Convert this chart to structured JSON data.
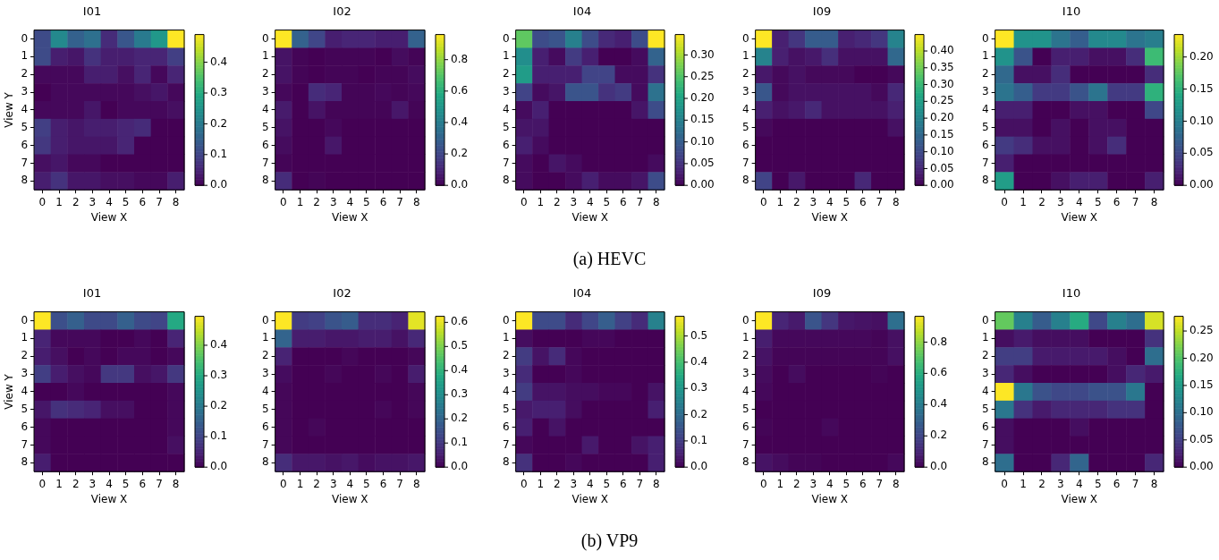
{
  "chart_data": [
    {
      "type": "heatmap",
      "title": "I01",
      "xlabel": "View X",
      "ylabel": "View Y",
      "categories": [
        "0",
        "1",
        "2",
        "3",
        "4",
        "5",
        "6",
        "7",
        "8"
      ],
      "y_categories": [
        "0",
        "1",
        "2",
        "3",
        "4",
        "5",
        "6",
        "7",
        "8"
      ],
      "cells": [
        [
          0.11,
          0.23,
          0.15,
          0.18,
          0.06,
          0.13,
          0.2,
          0.26,
          0.49
        ],
        [
          0.11,
          0.04,
          0.03,
          0.07,
          0.04,
          0.04,
          0.05,
          0.05,
          0.09
        ],
        [
          0.01,
          0.01,
          0.01,
          0.04,
          0.04,
          0.02,
          0.05,
          0.01,
          0.05
        ],
        [
          0.0,
          0.01,
          0.01,
          0.01,
          0.01,
          0.01,
          0.02,
          0.03,
          0.01
        ],
        [
          0.01,
          0.01,
          0.01,
          0.03,
          0.0,
          0.01,
          0.01,
          0.01,
          0.02
        ],
        [
          0.09,
          0.04,
          0.03,
          0.04,
          0.04,
          0.05,
          0.06,
          0.0,
          0.0
        ],
        [
          0.08,
          0.04,
          0.03,
          0.03,
          0.03,
          0.05,
          0.0,
          0.0,
          0.0
        ],
        [
          0.02,
          0.03,
          0.01,
          0.01,
          0.0,
          0.0,
          0.0,
          0.0,
          0.0
        ],
        [
          0.04,
          0.07,
          0.03,
          0.03,
          0.02,
          0.02,
          0.01,
          0.01,
          0.04
        ]
      ],
      "clim": [
        0,
        0.49
      ],
      "cticks": [
        {
          "value": 0,
          "label": "0.0"
        },
        0.1,
        0.2,
        0.3,
        0.4
      ]
    },
    {
      "type": "heatmap",
      "title": "I02",
      "xlabel": "View X",
      "categories": [
        "0",
        "1",
        "2",
        "3",
        "4",
        "5",
        "6",
        "7",
        "8"
      ],
      "y_categories": [
        "0",
        "1",
        "2",
        "3",
        "4",
        "5",
        "6",
        "7",
        "8"
      ],
      "cells": [
        [
          0.96,
          0.3,
          0.2,
          0.08,
          0.1,
          0.1,
          0.08,
          0.08,
          0.3
        ],
        [
          0.05,
          0.01,
          0.0,
          0.01,
          0.01,
          0.01,
          0.0,
          0.03,
          0.01
        ],
        [
          0.05,
          0.01,
          0.0,
          0.01,
          0.01,
          0.0,
          0.01,
          0.01,
          0.03
        ],
        [
          0.02,
          0.0,
          0.12,
          0.1,
          0.01,
          0.01,
          0.02,
          0.01,
          0.02
        ],
        [
          0.07,
          0.0,
          0.05,
          0.01,
          0.01,
          0.01,
          0.01,
          0.06,
          0.01
        ],
        [
          0.05,
          0.0,
          0.0,
          0.02,
          0.0,
          0.0,
          0.0,
          0.0,
          0.0
        ],
        [
          0.03,
          0.0,
          0.0,
          0.06,
          0.0,
          0.0,
          0.0,
          0.0,
          0.0
        ],
        [
          0.01,
          0.0,
          0.0,
          0.0,
          0.0,
          0.0,
          0.0,
          0.0,
          0.0
        ],
        [
          0.12,
          0.0,
          0.01,
          0.0,
          0.0,
          0.0,
          0.0,
          0.0,
          0.0
        ]
      ],
      "clim": [
        0,
        0.96
      ],
      "cticks": [
        {
          "value": 0,
          "label": "0.0"
        },
        0.2,
        0.4,
        0.6,
        0.8
      ]
    },
    {
      "type": "heatmap",
      "title": "I04",
      "xlabel": "View X",
      "categories": [
        "0",
        "1",
        "2",
        "3",
        "4",
        "5",
        "6",
        "7",
        "8"
      ],
      "y_categories": [
        "0",
        "1",
        "2",
        "3",
        "4",
        "5",
        "6",
        "7",
        "8"
      ],
      "cells": [
        [
          0.26,
          0.08,
          0.09,
          0.15,
          0.08,
          0.04,
          0.03,
          0.08,
          0.347
        ],
        [
          0.17,
          0.03,
          0.01,
          0.06,
          0.03,
          0.0,
          0.0,
          0.01,
          0.11
        ],
        [
          0.19,
          0.03,
          0.03,
          0.03,
          0.07,
          0.07,
          0.01,
          0.01,
          0.05
        ],
        [
          0.07,
          0.01,
          0.02,
          0.09,
          0.09,
          0.05,
          0.06,
          0.01,
          0.13
        ],
        [
          0.01,
          0.03,
          0.0,
          0.0,
          0.0,
          0.0,
          0.0,
          0.02,
          0.08
        ],
        [
          0.02,
          0.02,
          0.0,
          0.0,
          0.0,
          0.0,
          0.0,
          0.0,
          0.0
        ],
        [
          0.03,
          0.01,
          0.0,
          0.0,
          0.0,
          0.0,
          0.0,
          0.0,
          0.0
        ],
        [
          0.01,
          0.0,
          0.02,
          0.01,
          0.0,
          0.0,
          0.0,
          0.0,
          0.01
        ],
        [
          0.01,
          0.0,
          0.0,
          0.01,
          0.03,
          0.01,
          0.01,
          0.02,
          0.08
        ]
      ],
      "clim": [
        0,
        0.347
      ],
      "cticks": [
        {
          "value": 0,
          "label": "0.00"
        },
        {
          "value": 0.05,
          "label": "0.05"
        },
        {
          "value": 0.1,
          "label": "0.10"
        },
        {
          "value": 0.15,
          "label": "0.15"
        },
        {
          "value": 0.2,
          "label": "0.20"
        },
        {
          "value": 0.25,
          "label": "0.25"
        },
        {
          "value": 0.3,
          "label": "0.30"
        }
      ],
      "annotations": [
        "(a) HEVC"
      ]
    },
    {
      "type": "heatmap",
      "title": "I09",
      "xlabel": "View X",
      "categories": [
        "0",
        "1",
        "2",
        "3",
        "4",
        "5",
        "6",
        "7",
        "8"
      ],
      "y_categories": [
        "0",
        "1",
        "2",
        "3",
        "4",
        "5",
        "6",
        "7",
        "8"
      ],
      "cells": [
        [
          0.45,
          0.04,
          0.07,
          0.13,
          0.13,
          0.04,
          0.05,
          0.07,
          0.2
        ],
        [
          0.2,
          0.04,
          0.02,
          0.03,
          0.06,
          0.02,
          0.02,
          0.02,
          0.15
        ],
        [
          0.03,
          0.01,
          0.02,
          0.01,
          0.01,
          0.01,
          0.0,
          0.0,
          0.01
        ],
        [
          0.12,
          0.01,
          0.02,
          0.02,
          0.02,
          0.02,
          0.02,
          0.01,
          0.05
        ],
        [
          0.04,
          0.02,
          0.03,
          0.05,
          0.02,
          0.02,
          0.02,
          0.02,
          0.04
        ],
        [
          0.01,
          0.0,
          0.0,
          0.0,
          0.0,
          0.0,
          0.0,
          0.0,
          0.02
        ],
        [
          0.0,
          0.0,
          0.0,
          0.0,
          0.0,
          0.0,
          0.0,
          0.0,
          0.0
        ],
        [
          0.0,
          0.0,
          0.0,
          0.0,
          0.0,
          0.0,
          0.0,
          0.0,
          0.0
        ],
        [
          0.09,
          0.0,
          0.03,
          0.0,
          0.0,
          0.0,
          0.05,
          0.0,
          0.0
        ]
      ],
      "clim": [
        0,
        0.449
      ],
      "cticks": [
        {
          "value": 0,
          "label": "0.00"
        },
        {
          "value": 0.05,
          "label": "0.05"
        },
        {
          "value": 0.1,
          "label": "0.10"
        },
        {
          "value": 0.15,
          "label": "0.15"
        },
        {
          "value": 0.2,
          "label": "0.20"
        },
        {
          "value": 0.25,
          "label": "0.25"
        },
        {
          "value": 0.3,
          "label": "0.30"
        },
        {
          "value": 0.35,
          "label": "0.35"
        },
        {
          "value": 0.4,
          "label": "0.40"
        }
      ]
    },
    {
      "type": "heatmap",
      "title": "I10",
      "xlabel": "View X",
      "categories": [
        "0",
        "1",
        "2",
        "3",
        "4",
        "5",
        "6",
        "7",
        "8"
      ],
      "y_categories": [
        "0",
        "1",
        "2",
        "3",
        "4",
        "5",
        "6",
        "7",
        "8"
      ],
      "cells": [
        [
          0.235,
          0.12,
          0.12,
          0.09,
          0.07,
          0.11,
          0.11,
          0.09,
          0.1
        ],
        [
          0.12,
          0.06,
          0.0,
          0.02,
          0.02,
          0.01,
          0.01,
          0.03,
          0.16
        ],
        [
          0.08,
          0.01,
          0.01,
          0.03,
          0.0,
          0.0,
          0.0,
          0.0,
          0.03
        ],
        [
          0.09,
          0.07,
          0.04,
          0.04,
          0.06,
          0.09,
          0.04,
          0.04,
          0.15
        ],
        [
          0.02,
          0.02,
          0.0,
          0.0,
          0.01,
          0.01,
          0.0,
          0.0,
          0.05
        ],
        [
          0.01,
          0.01,
          0.0,
          0.01,
          0.0,
          0.01,
          0.01,
          0.0,
          0.0
        ],
        [
          0.04,
          0.03,
          0.01,
          0.01,
          0.0,
          0.01,
          0.03,
          0.0,
          0.0
        ],
        [
          0.02,
          0.0,
          0.0,
          0.0,
          0.0,
          0.0,
          0.0,
          0.0,
          0.0
        ],
        [
          0.13,
          0.0,
          0.0,
          0.01,
          0.02,
          0.02,
          0.0,
          0.0,
          0.02
        ]
      ],
      "clim": [
        0,
        0.235
      ],
      "cticks": [
        {
          "value": 0,
          "label": "0.00"
        },
        {
          "value": 0.05,
          "label": "0.05"
        },
        {
          "value": 0.1,
          "label": "0.10"
        },
        {
          "value": 0.15,
          "label": "0.15"
        },
        {
          "value": 0.2,
          "label": "0.20"
        }
      ]
    },
    {
      "type": "heatmap",
      "title": "I01",
      "xlabel": "View X",
      "ylabel": "View Y",
      "categories": [
        "0",
        "1",
        "2",
        "3",
        "4",
        "5",
        "6",
        "7",
        "8"
      ],
      "y_categories": [
        "0",
        "1",
        "2",
        "3",
        "4",
        "5",
        "6",
        "7",
        "8"
      ],
      "cells": [
        [
          0.495,
          0.12,
          0.15,
          0.11,
          0.11,
          0.15,
          0.11,
          0.1,
          0.3
        ],
        [
          0.05,
          0.01,
          0.01,
          0.01,
          0.0,
          0.0,
          0.01,
          0.0,
          0.05
        ],
        [
          0.04,
          0.02,
          0.0,
          0.01,
          0.0,
          0.01,
          0.01,
          0.0,
          0.01
        ],
        [
          0.09,
          0.04,
          0.02,
          0.01,
          0.08,
          0.08,
          0.02,
          0.03,
          0.08
        ],
        [
          0.0,
          0.0,
          0.01,
          0.0,
          0.0,
          0.0,
          0.0,
          0.0,
          0.01
        ],
        [
          0.03,
          0.07,
          0.06,
          0.05,
          0.02,
          0.02,
          0.0,
          0.0,
          0.01
        ],
        [
          0.01,
          0.0,
          0.0,
          0.0,
          0.0,
          0.0,
          0.0,
          0.0,
          0.01
        ],
        [
          0.01,
          0.0,
          0.0,
          0.0,
          0.0,
          0.0,
          0.0,
          0.0,
          0.02
        ],
        [
          0.04,
          0.0,
          0.0,
          0.0,
          0.0,
          0.0,
          0.0,
          0.0,
          0.0
        ]
      ],
      "clim": [
        0,
        0.495
      ],
      "cticks": [
        {
          "value": 0,
          "label": "0.0"
        },
        0.1,
        0.2,
        0.3,
        0.4
      ]
    },
    {
      "type": "heatmap",
      "title": "I02",
      "xlabel": "View X",
      "categories": [
        "0",
        "1",
        "2",
        "3",
        "4",
        "5",
        "6",
        "7",
        "8"
      ],
      "y_categories": [
        "0",
        "1",
        "2",
        "3",
        "4",
        "5",
        "6",
        "7",
        "8"
      ],
      "cells": [
        [
          0.625,
          0.11,
          0.12,
          0.16,
          0.18,
          0.08,
          0.08,
          0.06,
          0.6
        ],
        [
          0.2,
          0.05,
          0.05,
          0.04,
          0.04,
          0.05,
          0.05,
          0.03,
          0.07
        ],
        [
          0.06,
          0.0,
          0.0,
          0.0,
          0.01,
          0.0,
          0.0,
          0.0,
          0.01
        ],
        [
          0.02,
          0.0,
          0.0,
          0.01,
          0.0,
          0.0,
          0.01,
          0.0,
          0.05
        ],
        [
          0.01,
          0.0,
          0.0,
          0.0,
          0.0,
          0.0,
          0.0,
          0.0,
          0.01
        ],
        [
          0.01,
          0.0,
          0.0,
          0.0,
          0.0,
          0.0,
          0.01,
          0.0,
          0.01
        ],
        [
          0.01,
          0.0,
          0.01,
          0.0,
          0.0,
          0.0,
          0.0,
          0.0,
          0.0
        ],
        [
          0.01,
          0.0,
          0.0,
          0.0,
          0.0,
          0.0,
          0.0,
          0.0,
          0.0
        ],
        [
          0.08,
          0.04,
          0.04,
          0.03,
          0.04,
          0.02,
          0.03,
          0.03,
          0.04
        ]
      ],
      "clim": [
        0,
        0.625
      ],
      "cticks": [
        {
          "value": 0,
          "label": "0.0"
        },
        0.1,
        0.2,
        0.3,
        0.4,
        0.5,
        0.6
      ]
    },
    {
      "type": "heatmap",
      "title": "I04",
      "xlabel": "View X",
      "categories": [
        "0",
        "1",
        "2",
        "3",
        "4",
        "5",
        "6",
        "7",
        "8"
      ],
      "y_categories": [
        "0",
        "1",
        "2",
        "3",
        "4",
        "5",
        "6",
        "7",
        "8"
      ],
      "cells": [
        [
          0.575,
          0.13,
          0.13,
          0.07,
          0.12,
          0.17,
          0.11,
          0.07,
          0.25
        ],
        [
          0.02,
          0.0,
          0.0,
          0.0,
          0.01,
          0.01,
          0.0,
          0.0,
          0.0
        ],
        [
          0.1,
          0.03,
          0.07,
          0.01,
          0.0,
          0.0,
          0.0,
          0.0,
          0.0
        ],
        [
          0.07,
          0.0,
          0.0,
          0.01,
          0.0,
          0.0,
          0.0,
          0.0,
          0.0
        ],
        [
          0.1,
          0.03,
          0.03,
          0.02,
          0.02,
          0.01,
          0.01,
          0.0,
          0.03
        ],
        [
          0.04,
          0.05,
          0.05,
          0.02,
          0.0,
          0.0,
          0.0,
          0.0,
          0.05
        ],
        [
          0.05,
          0.0,
          0.03,
          0.0,
          0.0,
          0.0,
          0.0,
          0.0,
          0.0
        ],
        [
          0.01,
          0.0,
          0.0,
          0.0,
          0.04,
          0.0,
          0.0,
          0.03,
          0.05
        ],
        [
          0.08,
          0.0,
          0.0,
          0.01,
          0.0,
          0.0,
          0.0,
          0.0,
          0.05
        ]
      ],
      "clim": [
        0,
        0.575
      ],
      "cticks": [
        {
          "value": 0,
          "label": "0.0"
        },
        0.1,
        0.2,
        0.3,
        0.4,
        0.5
      ],
      "annotations": [
        "(b) VP9"
      ]
    },
    {
      "type": "heatmap",
      "title": "I09",
      "xlabel": "View X",
      "categories": [
        "0",
        "1",
        "2",
        "3",
        "4",
        "5",
        "6",
        "7",
        "8"
      ],
      "y_categories": [
        "0",
        "1",
        "2",
        "3",
        "4",
        "5",
        "6",
        "7",
        "8"
      ],
      "cells": [
        [
          0.965,
          0.1,
          0.07,
          0.25,
          0.15,
          0.06,
          0.05,
          0.04,
          0.35
        ],
        [
          0.08,
          0.02,
          0.02,
          0.02,
          0.02,
          0.02,
          0.02,
          0.01,
          0.04
        ],
        [
          0.05,
          0.01,
          0.01,
          0.01,
          0.01,
          0.01,
          0.01,
          0.01,
          0.04
        ],
        [
          0.03,
          0.0,
          0.03,
          0.0,
          0.0,
          0.0,
          0.0,
          0.01,
          0.0
        ],
        [
          0.02,
          0.0,
          0.0,
          0.0,
          0.0,
          0.0,
          0.0,
          0.0,
          0.0
        ],
        [
          0.0,
          0.0,
          0.0,
          0.0,
          0.0,
          0.0,
          0.0,
          0.0,
          0.0
        ],
        [
          0.01,
          0.0,
          0.0,
          0.0,
          0.02,
          0.0,
          0.0,
          0.0,
          0.0
        ],
        [
          0.0,
          0.0,
          0.0,
          0.0,
          0.0,
          0.0,
          0.0,
          0.0,
          0.0
        ],
        [
          0.05,
          0.03,
          0.01,
          0.01,
          0.0,
          0.0,
          0.0,
          0.0,
          0.02
        ]
      ],
      "clim": [
        0,
        0.965
      ],
      "cticks": [
        {
          "value": 0,
          "label": "0.0"
        },
        0.2,
        0.4,
        0.6,
        0.8
      ]
    },
    {
      "type": "heatmap",
      "title": "I10",
      "xlabel": "View X",
      "categories": [
        "0",
        "1",
        "2",
        "3",
        "4",
        "5",
        "6",
        "7",
        "8"
      ],
      "y_categories": [
        "0",
        "1",
        "2",
        "3",
        "4",
        "5",
        "6",
        "7",
        "8"
      ],
      "cells": [
        [
          0.21,
          0.12,
          0.08,
          0.12,
          0.17,
          0.06,
          0.12,
          0.1,
          0.26
        ],
        [
          0.01,
          0.02,
          0.01,
          0.01,
          0.01,
          0.0,
          0.0,
          0.0,
          0.04
        ],
        [
          0.05,
          0.05,
          0.02,
          0.02,
          0.02,
          0.02,
          0.01,
          0.0,
          0.1
        ],
        [
          0.03,
          0.01,
          0.0,
          0.0,
          0.0,
          0.0,
          0.01,
          0.03,
          0.02
        ],
        [
          0.277,
          0.11,
          0.07,
          0.06,
          0.06,
          0.07,
          0.07,
          0.11,
          0.0
        ],
        [
          0.11,
          0.04,
          0.02,
          0.03,
          0.03,
          0.03,
          0.04,
          0.04,
          0.0
        ],
        [
          0.01,
          0.0,
          0.0,
          0.0,
          0.01,
          0.0,
          0.0,
          0.0,
          0.0
        ],
        [
          0.01,
          0.0,
          0.0,
          0.0,
          0.0,
          0.0,
          0.0,
          0.0,
          0.0
        ],
        [
          0.1,
          0.0,
          0.0,
          0.03,
          0.09,
          0.0,
          0.0,
          0.0,
          0.03
        ]
      ],
      "clim": [
        0,
        0.277
      ],
      "cticks": [
        {
          "value": 0,
          "label": "0.00"
        },
        {
          "value": 0.05,
          "label": "0.05"
        },
        {
          "value": 0.1,
          "label": "0.10"
        },
        {
          "value": 0.15,
          "label": "0.15"
        },
        {
          "value": 0.2,
          "label": "0.20"
        },
        {
          "value": 0.25,
          "label": "0.25"
        }
      ]
    }
  ]
}
